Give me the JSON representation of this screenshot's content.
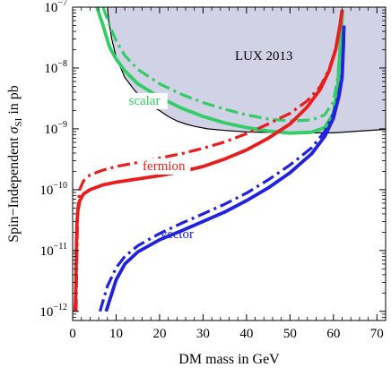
{
  "chart_data": {
    "type": "line",
    "xlabel": "DM mass in GeV",
    "ylabel_main": "Spin−Independent ",
    "ylabel_sigma": "σ",
    "ylabel_sub": "SI",
    "ylabel_tail": " in pb",
    "xlim": [
      0,
      72
    ],
    "ylim_log10": [
      -12.15,
      -7
    ],
    "y_scale": "log",
    "x_ticks": [
      {
        "value": 0,
        "label": "0"
      },
      {
        "value": 10,
        "label": "10"
      },
      {
        "value": 20,
        "label": "20"
      },
      {
        "value": 30,
        "label": "30"
      },
      {
        "value": 40,
        "label": "40"
      },
      {
        "value": 50,
        "label": "50"
      },
      {
        "value": 60,
        "label": "60"
      },
      {
        "value": 70,
        "label": "70"
      }
    ],
    "y_ticks": [
      {
        "value": 1e-12,
        "base": "10",
        "exp": "−12"
      },
      {
        "value": 1e-11,
        "base": "10",
        "exp": "−11"
      },
      {
        "value": 1e-10,
        "base": "10",
        "exp": "−10"
      },
      {
        "value": 1e-09,
        "base": "10",
        "exp": "−9"
      },
      {
        "value": 1e-08,
        "base": "10",
        "exp": "−8"
      },
      {
        "value": 1e-07,
        "base": "10",
        "exp": "−7"
      }
    ],
    "exclusion_region": {
      "label": "LUX 2013",
      "fill": "#d2d2e6",
      "edge": "#000000",
      "boundary": [
        [
          8.0,
          1e-07
        ],
        [
          8.3,
          6e-08
        ],
        [
          9.0,
          3e-08
        ],
        [
          10.0,
          1.5e-08
        ],
        [
          12.0,
          7e-09
        ],
        [
          14.0,
          4.5e-09
        ],
        [
          16.0,
          3.1e-09
        ],
        [
          18.0,
          2.4e-09
        ],
        [
          20.0,
          2e-09
        ],
        [
          22.0,
          1.6e-09
        ],
        [
          24.0,
          1.35e-09
        ],
        [
          26.0,
          1.2e-09
        ],
        [
          28.0,
          1.1e-09
        ],
        [
          31.0,
          1e-09
        ],
        [
          35.0,
          9.4e-10
        ],
        [
          40.0,
          8.9e-10
        ],
        [
          50.0,
          8.6e-10
        ],
        [
          60.0,
          8.6e-10
        ],
        [
          72.0,
          9.8e-10
        ]
      ]
    },
    "series": [
      {
        "name": "scalar",
        "color": "#33cc66",
        "style": "solid",
        "points": [
          [
            5.6,
            1e-07
          ],
          [
            7.0,
            5e-08
          ],
          [
            8.5,
            2.2e-08
          ],
          [
            10,
            1.4e-08
          ],
          [
            12,
            9e-09
          ],
          [
            15,
            5.5e-09
          ],
          [
            20,
            3.3e-09
          ],
          [
            25,
            2.2e-09
          ],
          [
            30,
            1.6e-09
          ],
          [
            35,
            1.25e-09
          ],
          [
            40,
            1.05e-09
          ],
          [
            45,
            9.2e-10
          ],
          [
            50,
            8.5e-10
          ],
          [
            55,
            8.8e-10
          ],
          [
            58,
            1.05e-09
          ],
          [
            60,
            1.8e-09
          ],
          [
            61,
            5e-09
          ],
          [
            61.6,
            2.5e-08
          ],
          [
            62.1,
            9e-08
          ]
        ]
      },
      {
        "name": "scalar",
        "color": "#33cc66",
        "style": "dashdot",
        "points": [
          [
            7.0,
            1e-07
          ],
          [
            8.5,
            5e-08
          ],
          [
            10,
            2.8e-08
          ],
          [
            12,
            1.6e-08
          ],
          [
            15,
            9.5e-09
          ],
          [
            20,
            5.5e-09
          ],
          [
            25,
            3.7e-09
          ],
          [
            30,
            2.7e-09
          ],
          [
            35,
            2.1e-09
          ],
          [
            40,
            1.7e-09
          ],
          [
            45,
            1.45e-09
          ],
          [
            50,
            1.35e-09
          ],
          [
            55,
            1.4e-09
          ],
          [
            58,
            1.7e-09
          ],
          [
            60,
            2.8e-09
          ],
          [
            61,
            7e-09
          ],
          [
            61.6,
            3e-08
          ],
          [
            62.1,
            9e-08
          ]
        ]
      },
      {
        "name": "fermion",
        "color": "#e81e1e",
        "style": "solid",
        "points": [
          [
            0.55,
            1e-12
          ],
          [
            0.7,
            1.8e-12
          ],
          [
            0.8,
            5e-12
          ],
          [
            0.9,
            1.6e-11
          ],
          [
            1.0,
            2.8e-11
          ],
          [
            1.2,
            4.5e-11
          ],
          [
            1.6,
            6.5e-11
          ],
          [
            2.5,
            8.5e-11
          ],
          [
            4,
            1e-10
          ],
          [
            7,
            1.2e-10
          ],
          [
            10,
            1.33e-10
          ],
          [
            15,
            1.5e-10
          ],
          [
            20,
            1.7e-10
          ],
          [
            25,
            1.98e-10
          ],
          [
            30,
            2.4e-10
          ],
          [
            35,
            3.2e-10
          ],
          [
            40,
            4.5e-10
          ],
          [
            45,
            7e-10
          ],
          [
            50,
            1.2e-09
          ],
          [
            54,
            2.3e-09
          ],
          [
            57,
            4.5e-09
          ],
          [
            59,
            9e-09
          ],
          [
            60.5,
            2e-08
          ],
          [
            61.5,
            5e-08
          ],
          [
            62,
            9e-08
          ]
        ]
      },
      {
        "name": "fermion",
        "color": "#e81e1e",
        "style": "dashdot",
        "points": [
          [
            0.8,
            1e-12
          ],
          [
            1.0,
            1e-11
          ],
          [
            1.2,
            5e-11
          ],
          [
            1.6,
            1e-10
          ],
          [
            2.5,
            1.4e-10
          ],
          [
            4,
            1.75e-10
          ],
          [
            7,
            2.1e-10
          ],
          [
            10,
            2.4e-10
          ],
          [
            15,
            2.8e-10
          ],
          [
            20,
            3.3e-10
          ],
          [
            25,
            3.9e-10
          ],
          [
            30,
            4.8e-10
          ],
          [
            35,
            6.1e-10
          ],
          [
            40,
            8.3e-10
          ],
          [
            45,
            1.2e-09
          ],
          [
            50,
            1.8e-09
          ],
          [
            54,
            2.9e-09
          ],
          [
            57,
            5e-09
          ],
          [
            59,
            9.5e-09
          ],
          [
            60.5,
            2.1e-08
          ],
          [
            61.5,
            5e-08
          ],
          [
            62,
            9e-08
          ]
        ]
      },
      {
        "name": "vector",
        "color": "#2222dd",
        "style": "solid",
        "points": [
          [
            7.7,
            1e-12
          ],
          [
            10,
            3.3e-12
          ],
          [
            12,
            6e-12
          ],
          [
            15,
            9.5e-12
          ],
          [
            20,
            1.5e-11
          ],
          [
            25,
            2.1e-11
          ],
          [
            30,
            3e-11
          ],
          [
            35,
            4.3e-11
          ],
          [
            40,
            6.6e-11
          ],
          [
            45,
            1.07e-10
          ],
          [
            50,
            1.9e-10
          ],
          [
            55,
            3.9e-10
          ],
          [
            58,
            7.5e-10
          ],
          [
            60,
            1.5e-09
          ],
          [
            61.3,
            3.5e-09
          ],
          [
            62,
            7e-09
          ],
          [
            62.3,
            2.5e-08
          ],
          [
            62.4,
            5e-08
          ]
        ]
      },
      {
        "name": "vector",
        "color": "#2222dd",
        "style": "dashdot",
        "points": [
          [
            6.3,
            1e-12
          ],
          [
            8,
            2.6e-12
          ],
          [
            10,
            5.2e-12
          ],
          [
            12,
            8e-12
          ],
          [
            15,
            1.2e-11
          ],
          [
            20,
            1.9e-11
          ],
          [
            25,
            2.8e-11
          ],
          [
            30,
            4e-11
          ],
          [
            35,
            5.8e-11
          ],
          [
            40,
            8.8e-11
          ],
          [
            45,
            1.45e-10
          ],
          [
            50,
            2.55e-10
          ],
          [
            55,
            4.9e-10
          ],
          [
            58,
            9e-10
          ],
          [
            60,
            1.75e-09
          ],
          [
            61.3,
            4e-09
          ],
          [
            62,
            8.5e-09
          ],
          [
            62.3,
            2.5e-08
          ],
          [
            62.4,
            5e-08
          ]
        ]
      }
    ],
    "annotations": [
      {
        "text": "scalar",
        "color": "#33cc66",
        "x": 16.5,
        "y": 2.5e-09,
        "bg": true
      },
      {
        "text": "fermion",
        "color": "#e81e1e",
        "x": 21,
        "y": 2.1e-10,
        "bg": true
      },
      {
        "text": "vector",
        "color": "#2222dd",
        "x": 24,
        "y": 1.6e-11,
        "bg": false
      },
      {
        "text": "LUX 2013",
        "color": "#000000",
        "x": 44,
        "y": 1.35e-08,
        "bg": false
      }
    ]
  }
}
